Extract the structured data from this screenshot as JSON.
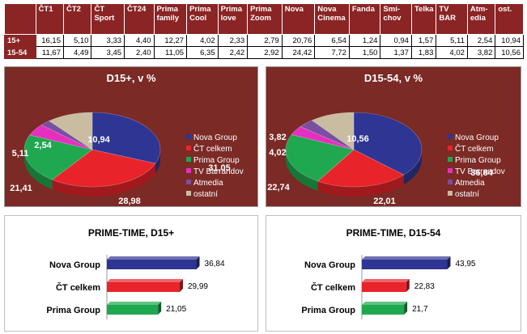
{
  "table": {
    "headers": [
      "",
      "ČT1",
      "ČT2",
      "ČT Sport",
      "ČT24",
      "Prima family",
      "Prima Cool",
      "Prima love",
      "Prima Zoom",
      "Nova",
      "Nova Cinema",
      "Fanda",
      "Smí-chov",
      "Telka",
      "TV BAR",
      "Atm-edia",
      "ost."
    ],
    "rows": [
      [
        "15+",
        "16,15",
        "5,10",
        "3,33",
        "4,40",
        "12,27",
        "4,02",
        "2,33",
        "2,79",
        "20,76",
        "6,54",
        "1,24",
        "0,94",
        "1,57",
        "5,11",
        "2,54",
        "10,94"
      ],
      [
        "15-54",
        "11,67",
        "4,49",
        "3,45",
        "2,40",
        "11,05",
        "6,35",
        "2,42",
        "2,92",
        "24,42",
        "7,72",
        "1,50",
        "1,37",
        "1,83",
        "4,02",
        "3,82",
        "10,56"
      ]
    ]
  },
  "colors": {
    "Nova Group": "#2e3592",
    "ČT celkem": "#e8242a",
    "Prima Group": "#1fa84f",
    "TV Barrandov": "#e62fc0",
    "Atmedia": "#7a4ea0",
    "ostatní": "#c9bca0"
  },
  "chart_data": [
    {
      "type": "pie",
      "title": "D15+, v %",
      "categories": [
        "Nova Group",
        "ČT celkem",
        "Prima Group",
        "TV Barrandov",
        "Atmedia",
        "ostatní"
      ],
      "values": [
        31.05,
        28.98,
        21.41,
        5.11,
        2.54,
        10.94
      ],
      "labels": [
        "31,05",
        "28,98",
        "21,41",
        "5,11",
        "2,54",
        "10,94"
      ],
      "legend": "right"
    },
    {
      "type": "pie",
      "title": "D15-54, v %",
      "categories": [
        "Nova Group",
        "ČT celkem",
        "Prima Group",
        "TV Barrandov",
        "Atmedia",
        "ostatní"
      ],
      "values": [
        36.84,
        22.01,
        22.74,
        4.02,
        3.82,
        10.56
      ],
      "labels": [
        "36,84",
        "22,01",
        "22,74",
        "4,02",
        "3,82",
        "10,56"
      ],
      "legend": "right"
    },
    {
      "type": "bar",
      "orientation": "horizontal",
      "title": "PRIME-TIME, D15+",
      "categories": [
        "Nova Group",
        "ČT celkem",
        "Prima Group"
      ],
      "values": [
        36.84,
        29.99,
        21.05
      ],
      "labels": [
        "36,84",
        "29,99",
        "21,05"
      ]
    },
    {
      "type": "bar",
      "orientation": "horizontal",
      "title": "PRIME-TIME, D15-54",
      "categories": [
        "Nova Group",
        "ČT celkem",
        "Prima Group"
      ],
      "values": [
        43.95,
        22.83,
        21.7
      ],
      "labels": [
        "43,95",
        "22,83",
        "21,7"
      ]
    }
  ]
}
